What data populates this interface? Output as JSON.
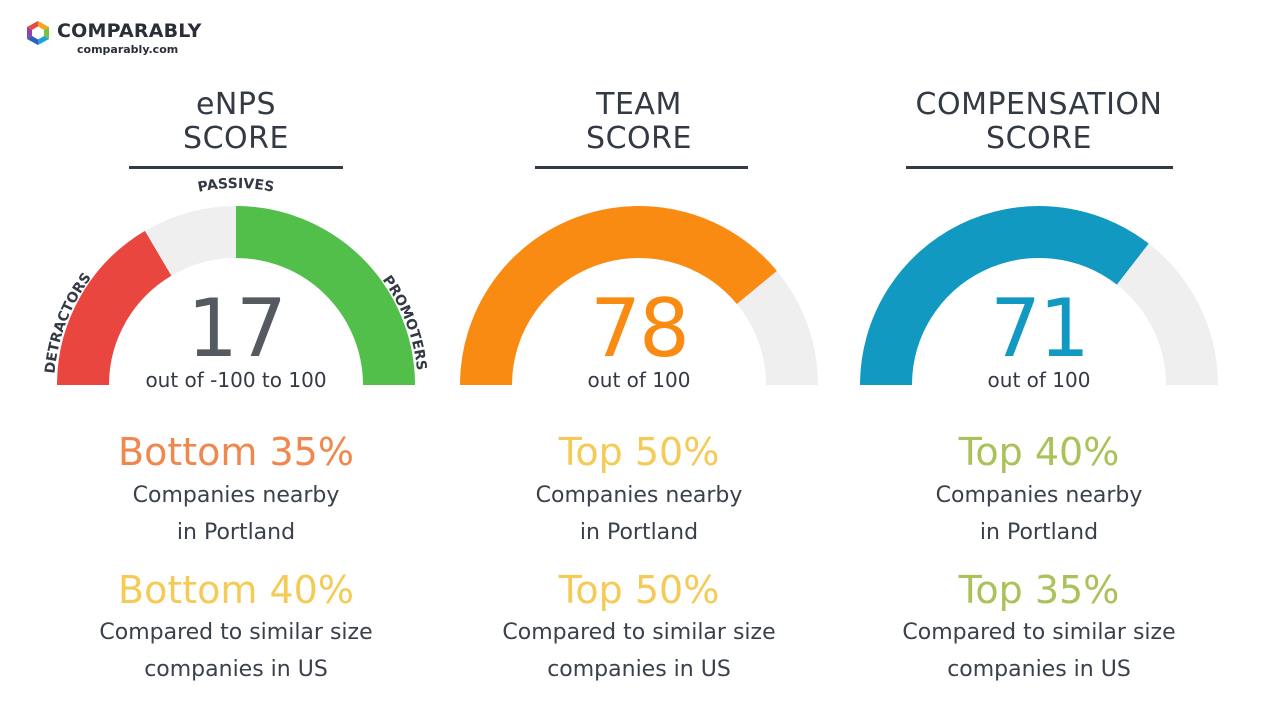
{
  "brand": {
    "name": "COMPARABLY",
    "url": "comparably.com"
  },
  "colors": {
    "text_dark": "#333a44",
    "track": "#efefef",
    "detractors": "#e8463f",
    "promoters": "#52bf4a",
    "team": "#f98b12",
    "compensation": "#1199c1",
    "rank_orange": "#f0884e",
    "rank_yellow": "#f5cb57",
    "rank_green": "#a9c25a"
  },
  "columns": [
    {
      "title_line1": "eNPS",
      "title_line2": "SCORE",
      "score": "17",
      "score_value": 17,
      "score_min": -100,
      "score_max": 100,
      "score_sub": "out of -100 to 100",
      "gauge_labels": {
        "left": "DETRACTORS",
        "top": "PASSIVES",
        "right": "PROMOTERS"
      },
      "rank1": "Bottom 35%",
      "rank1_desc_line1": "Companies nearby",
      "rank1_desc_line2": "in Portland",
      "rank2": "Bottom 40%",
      "rank2_desc_line1": "Compared to similar size",
      "rank2_desc_line2": "companies in US"
    },
    {
      "title_line1": "TEAM",
      "title_line2": "SCORE",
      "score": "78",
      "score_value": 78,
      "score_min": 0,
      "score_max": 100,
      "score_sub": "out of 100",
      "rank1": "Top 50%",
      "rank1_desc_line1": "Companies nearby",
      "rank1_desc_line2": "in Portland",
      "rank2": "Top 50%",
      "rank2_desc_line1": "Compared to similar size",
      "rank2_desc_line2": "companies in US"
    },
    {
      "title_line1": "COMPENSATION",
      "title_line2": "SCORE",
      "score": "71",
      "score_value": 71,
      "score_min": 0,
      "score_max": 100,
      "score_sub": "out of 100",
      "rank1": "Top 40%",
      "rank1_desc_line1": "Companies nearby",
      "rank1_desc_line2": "in Portland",
      "rank2": "Top 35%",
      "rank2_desc_line1": "Compared to similar size",
      "rank2_desc_line2": "companies in US"
    }
  ]
}
